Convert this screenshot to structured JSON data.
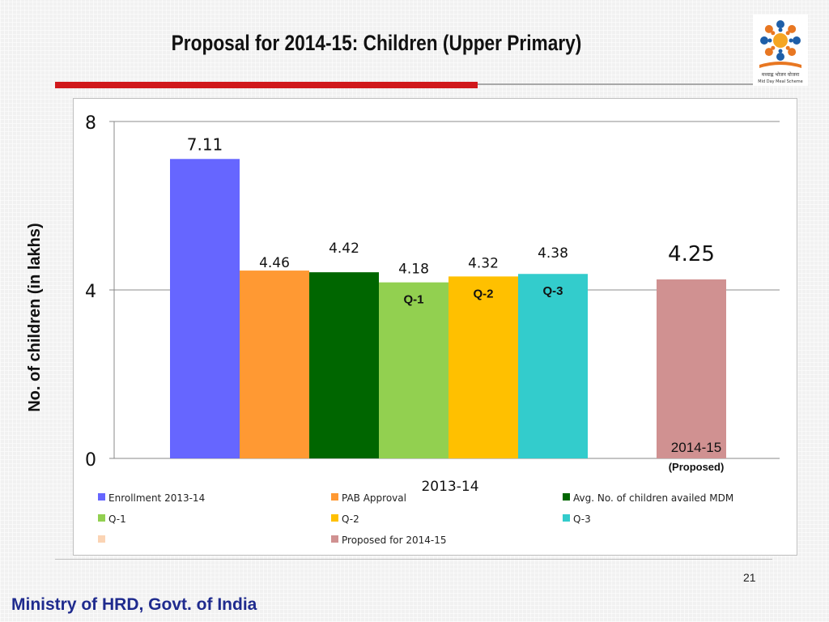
{
  "slide": {
    "title": "Proposal for 2014-15: Children (Upper Primary)",
    "page_number": "21",
    "footer": "Ministry of HRD, Govt. of India",
    "logo_caption": "मध्याह्न भोजन योजना",
    "logo_subcaption": "Mid Day Meal Scheme"
  },
  "chart_data": {
    "type": "bar",
    "title": "",
    "ylabel": "No. of children (in lakhs)",
    "ylim": [
      0,
      8
    ],
    "yticks": [
      "0",
      "4",
      "8"
    ],
    "grid": true,
    "legend_position": "bottom",
    "groups": [
      "2013-14",
      "2014-15"
    ],
    "group_sublabel": "(Proposed)",
    "series": [
      {
        "name": "Enrollment 2013-14",
        "value": 7.11,
        "label": "7.11",
        "color": "#6666ff",
        "group": "2013-14",
        "bar_label": ""
      },
      {
        "name": "PAB Approval",
        "value": 4.46,
        "label": "4.46",
        "color": "#ff9933",
        "group": "2013-14",
        "bar_label": ""
      },
      {
        "name": "Avg. No. of children availed MDM",
        "value": 4.42,
        "label": "4.42",
        "color": "#006600",
        "group": "2013-14",
        "bar_label": ""
      },
      {
        "name": "Q-1",
        "value": 4.18,
        "label": "4.18",
        "color": "#92d050",
        "group": "2013-14",
        "bar_label": "Q-1"
      },
      {
        "name": "Q-2",
        "value": 4.32,
        "label": "4.32",
        "color": "#ffc000",
        "group": "2013-14",
        "bar_label": "Q-2"
      },
      {
        "name": "Q-3",
        "value": 4.38,
        "label": "4.38",
        "color": "#33cccc",
        "group": "2013-14",
        "bar_label": "Q-3"
      },
      {
        "name": "",
        "value": null,
        "label": "",
        "color": "#fbd4b4",
        "group": "",
        "bar_label": ""
      },
      {
        "name": "Proposed for 2014-15",
        "value": 4.25,
        "label": "4.25",
        "color": "#d09191",
        "group": "2014-15",
        "bar_label": ""
      }
    ]
  }
}
